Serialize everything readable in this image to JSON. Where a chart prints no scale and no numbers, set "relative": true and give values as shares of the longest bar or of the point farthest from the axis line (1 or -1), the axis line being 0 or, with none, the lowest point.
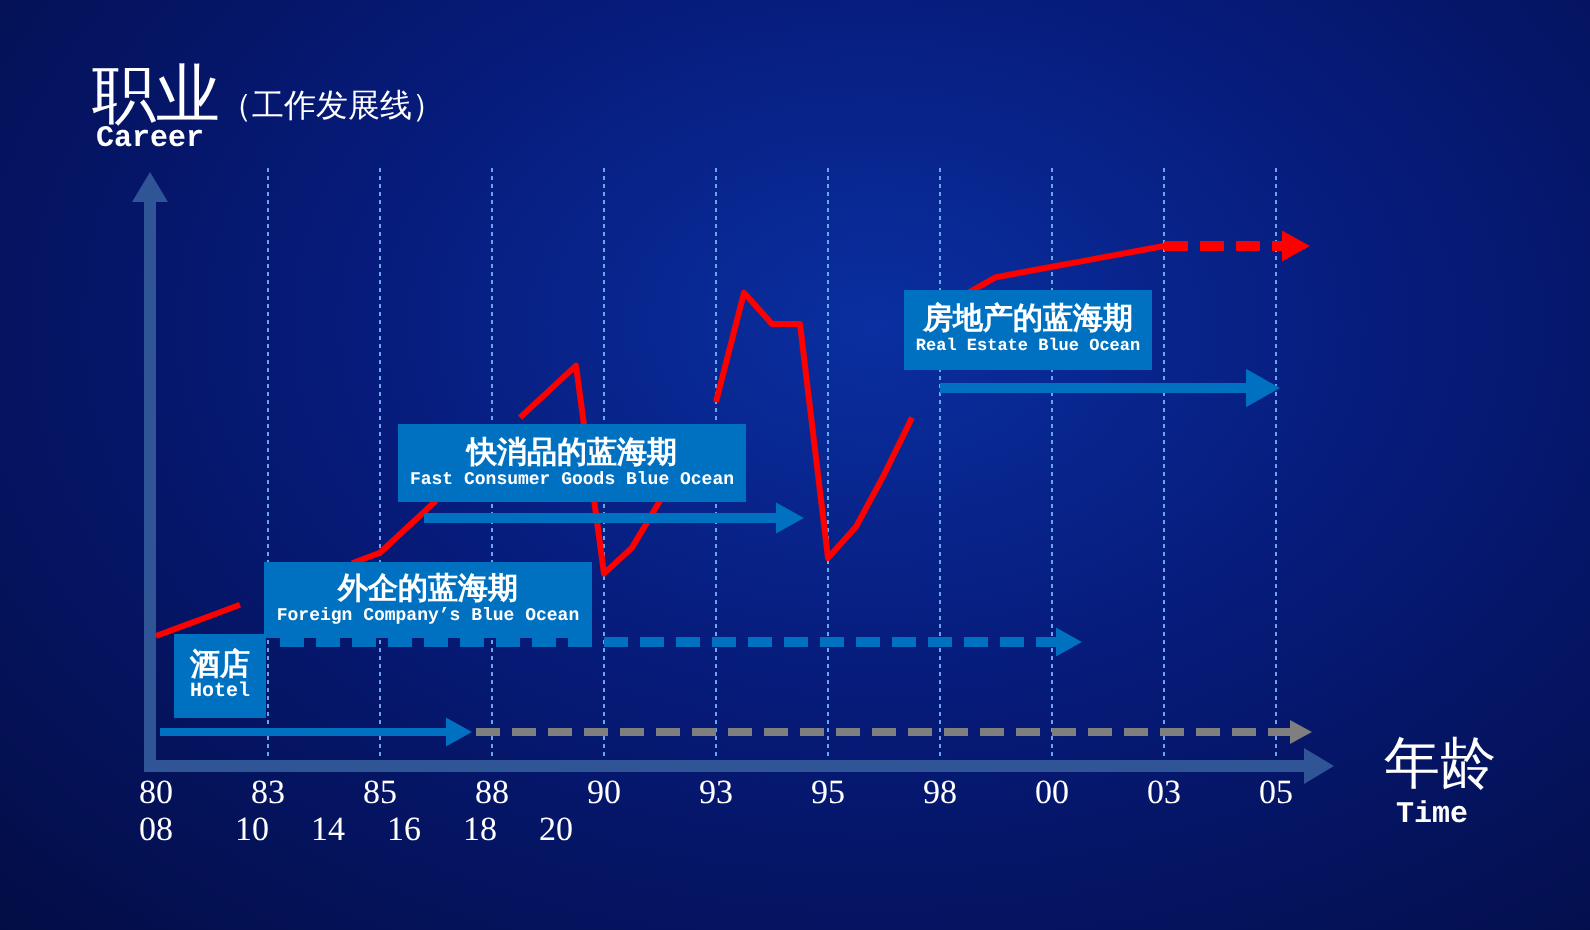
{
  "chart_data": {
    "type": "line",
    "title": "职业",
    "subtitle": "（工作发展线）",
    "ylabel": "Career",
    "xlabel": "年龄\nTime",
    "relative": true,
    "grid": "x",
    "legend": false,
    "marker": "none",
    "line_style": "solid",
    "categories": [
      "80",
      null,
      null,
      null,
      "83",
      null,
      null,
      null,
      "85",
      null,
      null,
      null,
      "88",
      null,
      null,
      null,
      "90",
      null,
      null,
      null,
      "93",
      null,
      null,
      null,
      "95",
      null,
      null,
      null,
      "98",
      null,
      null,
      null,
      "00",
      null,
      null,
      null,
      "03",
      null,
      null,
      null,
      "05"
    ],
    "series": [
      {
        "color": "#ff0000",
        "values": [
          0.25,
          0.27,
          0.29,
          0.31,
          null,
          null,
          null,
          0.39,
          0.41,
          0.46,
          0.51,
          null,
          null,
          0.67,
          0.72,
          0.77,
          0.37,
          0.42,
          0.51,
          null,
          0.7,
          0.91,
          0.85,
          0.85,
          0.4,
          0.46,
          0.56,
          0.67,
          null,
          0.91,
          0.94,
          0.95,
          0.96,
          0.97,
          0.98,
          0.99,
          1,
          null,
          null,
          null,
          null
        ]
      }
    ],
    "annotations": [
      "酒店\nHotel",
      "外企的蓝海期\nForeign Company’s Blue Ocean",
      "快消品的蓝海期\nFast Consumer Goods Blue Ocean",
      "房地产的蓝海期\nReal Estate Blue Ocean",
      "08",
      "10",
      "14",
      "16",
      "18",
      "20"
    ]
  }
}
